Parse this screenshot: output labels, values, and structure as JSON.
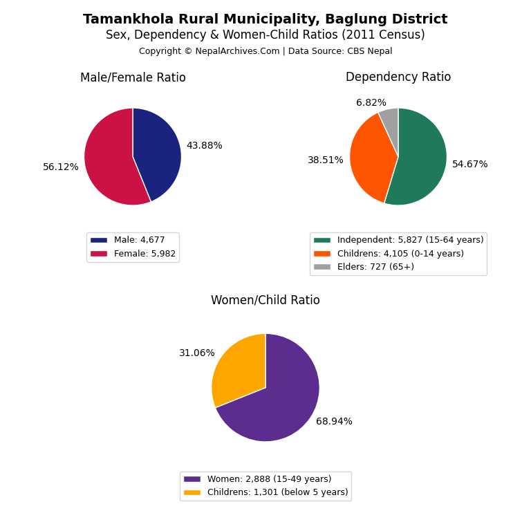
{
  "title": "Tamankhola Rural Municipality, Baglung District",
  "subtitle": "Sex, Dependency & Women-Child Ratios (2011 Census)",
  "annotations": [
    "Copyright © NepalArchives.Com | Data Source: CBS Nepal"
  ],
  "chart_data": [
    {
      "type": "pie",
      "title": "Male/Female Ratio",
      "categories": [
        "Male: 4,677",
        "Female: 5,982"
      ],
      "values": [
        43.88,
        56.12
      ],
      "value_labels": [
        "43.88%",
        "56.12%"
      ],
      "colors": [
        "#1A237E",
        "#CC1144"
      ],
      "data_labels": true,
      "legend": "bottom"
    },
    {
      "type": "pie",
      "title": "Dependency Ratio",
      "categories": [
        "Independent: 5,827 (15-64 years)",
        "Childrens: 4,105 (0-14 years)",
        "Elders: 727 (65+)"
      ],
      "values": [
        54.67,
        38.51,
        6.82
      ],
      "value_labels": [
        "54.67%",
        "38.51%",
        "6.82%"
      ],
      "colors": [
        "#1E7A5A",
        "#FF5500",
        "#A0A0A0"
      ],
      "data_labels": true,
      "legend": "bottom"
    },
    {
      "type": "pie",
      "title": "Women/Child Ratio",
      "categories": [
        "Women: 2,888 (15-49 years)",
        "Childrens: 1,301 (below 5 years)"
      ],
      "values": [
        68.94,
        31.06
      ],
      "value_labels": [
        "68.94%",
        "31.06%"
      ],
      "colors": [
        "#5B2D8E",
        "#FFA500"
      ],
      "data_labels": true,
      "legend": "bottom"
    }
  ]
}
